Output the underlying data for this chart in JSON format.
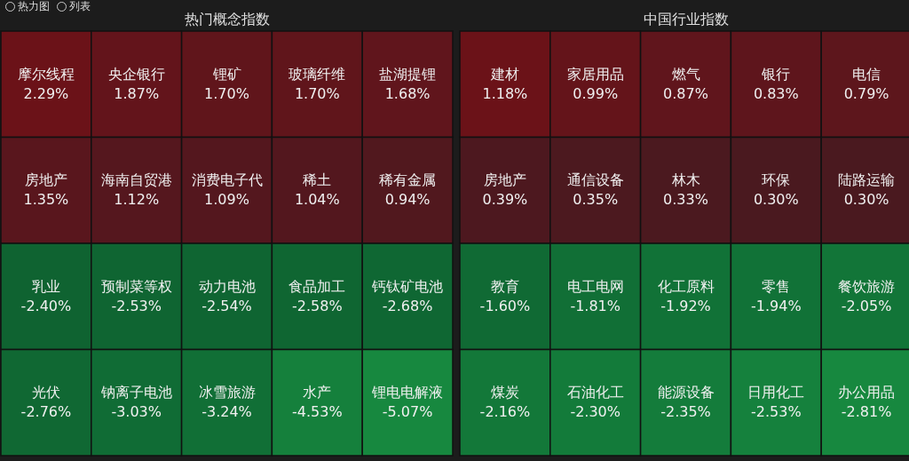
{
  "chart_data": [
    {
      "type": "other",
      "title": "热门概念指数",
      "annotations": [
        "热力图",
        "列表"
      ],
      "categories": [
        "摩尔线程",
        "央企银行",
        "锂矿",
        "玻璃纤维",
        "盐湖提锂",
        "房地产",
        "海南自贸港",
        "消费电子代",
        "稀土",
        "稀有金属",
        "乳业",
        "预制菜等权",
        "动力电池",
        "食品加工",
        "钙钛矿电池",
        "光伏",
        "钠离子电池",
        "冰雪旅游",
        "水产",
        "锂电电解液"
      ],
      "values": [
        2.29,
        1.87,
        1.7,
        1.7,
        1.68,
        1.35,
        1.12,
        1.09,
        1.04,
        0.94,
        -2.4,
        -2.53,
        -2.54,
        -2.58,
        -2.68,
        -2.76,
        -3.03,
        -3.24,
        -4.53,
        -5.07
      ],
      "value_labels": [
        "2.29%",
        "1.87%",
        "1.70%",
        "1.70%",
        "1.68%",
        "1.35%",
        "1.12%",
        "1.09%",
        "1.04%",
        "0.94%",
        "-2.40%",
        "-2.53%",
        "-2.54%",
        "-2.58%",
        "-2.68%",
        "-2.76%",
        "-3.03%",
        "-3.24%",
        "-4.53%",
        "-5.07%"
      ]
    },
    {
      "type": "other",
      "title": "中国行业指数",
      "categories": [
        "建材",
        "家居用品",
        "燃气",
        "银行",
        "电信",
        "房地产",
        "通信设备",
        "林木",
        "环保",
        "陆路运输",
        "教育",
        "电工电网",
        "化工原料",
        "零售",
        "餐饮旅游",
        "煤炭",
        "石油化工",
        "能源设备",
        "日用化工",
        "办公用品"
      ],
      "values": [
        1.18,
        0.99,
        0.87,
        0.83,
        0.79,
        0.39,
        0.35,
        0.33,
        0.3,
        0.3,
        -1.6,
        -1.81,
        -1.92,
        -1.94,
        -2.05,
        -2.16,
        -2.3,
        -2.35,
        -2.53,
        -2.81
      ],
      "value_labels": [
        "1.18%",
        "0.99%",
        "0.87%",
        "0.83%",
        "0.79%",
        "0.39%",
        "0.35%",
        "0.33%",
        "0.30%",
        "0.30%",
        "-1.60%",
        "-1.81%",
        "-1.92%",
        "-1.94%",
        "-2.05%",
        "-2.16%",
        "-2.30%",
        "-2.35%",
        "-2.53%",
        "-2.81%"
      ]
    }
  ]
}
